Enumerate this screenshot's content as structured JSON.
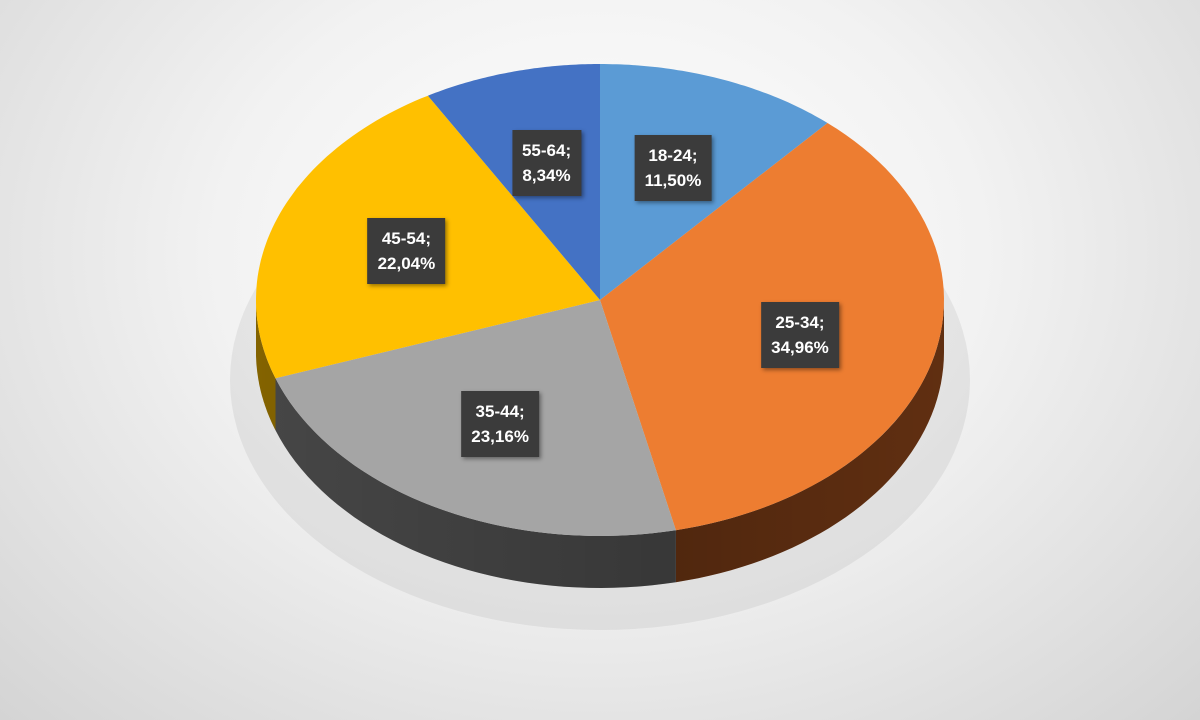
{
  "chart_data": {
    "type": "pie",
    "style": "3d",
    "title": "",
    "start": "top",
    "direction": "clockwise",
    "slices": [
      {
        "category": "18-24",
        "value": 11.5,
        "label": "18-24;",
        "pct": "11,50%",
        "color": "#5b9bd5",
        "side": "#3f6f9a"
      },
      {
        "category": "25-34",
        "value": 34.96,
        "label": "25-34;",
        "pct": "34,96%",
        "color": "#ed7d31",
        "side": "#6b3413"
      },
      {
        "category": "35-44",
        "value": 23.16,
        "label": "35-44;",
        "pct": "23,16%",
        "color": "#a5a5a5",
        "side": "#4a4a4a"
      },
      {
        "category": "45-54",
        "value": 22.04,
        "label": "45-54;",
        "pct": "22,04%",
        "color": "#ffc000",
        "side": "#8a6800"
      },
      {
        "category": "55-64",
        "value": 8.34,
        "label": "55-64;",
        "pct": "8,34%",
        "color": "#4472c4",
        "side": "#2a4a80"
      }
    ]
  }
}
